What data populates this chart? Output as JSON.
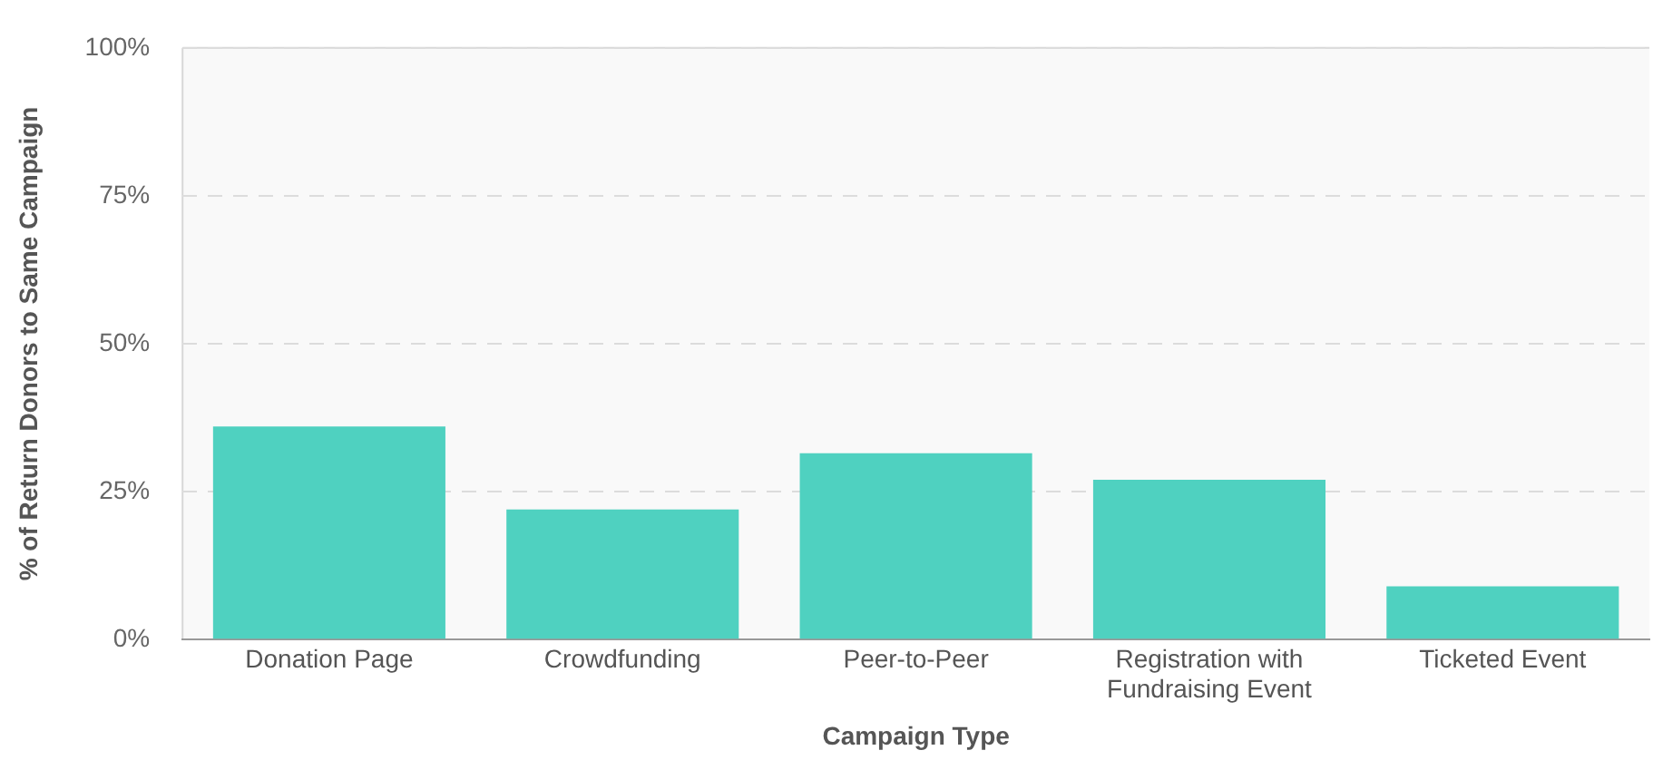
{
  "chart_data": {
    "type": "bar",
    "xlabel": "Campaign Type",
    "ylabel": "% of Return Donors to Same Campaign",
    "categories": [
      "Donation Page",
      "Crowdfunding",
      "Peer-to-Peer",
      "Registration with Fundraising Event",
      "Ticketed Event"
    ],
    "values": [
      36,
      22,
      31.5,
      27,
      9
    ],
    "color": "#4fd1c0",
    "ylim": [
      0,
      100
    ],
    "yticks": [
      {
        "value": 0,
        "label": "0%"
      },
      {
        "value": 25,
        "label": "25%"
      },
      {
        "value": 50,
        "label": "50%"
      },
      {
        "value": 75,
        "label": "75%"
      },
      {
        "value": 100,
        "label": "100%"
      }
    ],
    "grid": "y"
  }
}
